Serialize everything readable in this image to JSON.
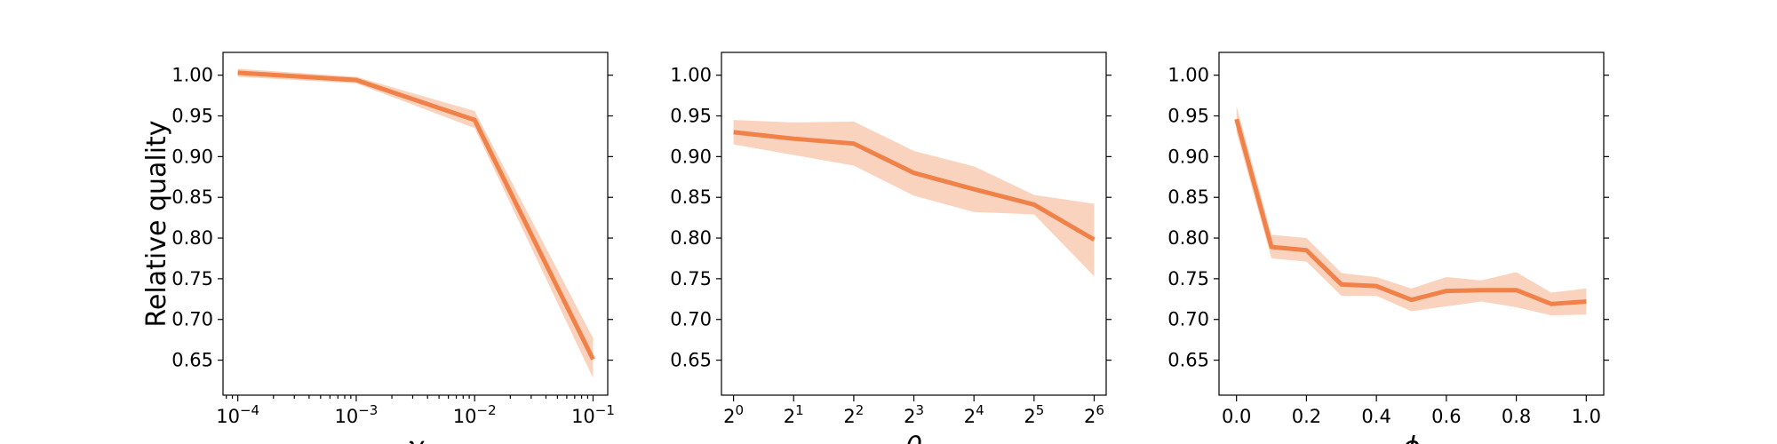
{
  "colors": {
    "series": "#f08148",
    "band": "#f08148"
  },
  "chart_data": [
    {
      "type": "line",
      "xscale": "log",
      "x": [
        0.0001,
        0.001,
        0.01,
        0.1
      ],
      "xlim": [
        7.5e-05,
        0.133
      ],
      "xticks": [
        {
          "value": 0.0001,
          "base": "10",
          "exp": "−4"
        },
        {
          "value": 0.001,
          "base": "10",
          "exp": "−3"
        },
        {
          "value": 0.01,
          "base": "10",
          "exp": "−2"
        },
        {
          "value": 0.1,
          "base": "10",
          "exp": "−1"
        }
      ],
      "xlabel": "γ",
      "ylabel": "Relative quality",
      "ylim": [
        0.607,
        1.028
      ],
      "yticks": [
        "0.65",
        "0.70",
        "0.75",
        "0.80",
        "0.85",
        "0.90",
        "0.95",
        "1.00"
      ],
      "series": [
        {
          "values": [
            1.003,
            0.994,
            0.945,
            0.651
          ],
          "lower": [
            0.998,
            0.99,
            0.935,
            0.628
          ],
          "upper": [
            1.008,
            0.998,
            0.956,
            0.677
          ]
        }
      ],
      "grid": false
    },
    {
      "type": "line",
      "xscale": "log2",
      "x": [
        1,
        2,
        4,
        8,
        16,
        32,
        64
      ],
      "xlim": [
        0.87,
        73.5
      ],
      "xticks": [
        {
          "value": 1,
          "base": "2",
          "exp": "0"
        },
        {
          "value": 2,
          "base": "2",
          "exp": "1"
        },
        {
          "value": 4,
          "base": "2",
          "exp": "2"
        },
        {
          "value": 8,
          "base": "2",
          "exp": "3"
        },
        {
          "value": 16,
          "base": "2",
          "exp": "4"
        },
        {
          "value": 32,
          "base": "2",
          "exp": "5"
        },
        {
          "value": 64,
          "base": "2",
          "exp": "6"
        }
      ],
      "xlabel": "θ",
      "ylabel": "",
      "ylim": [
        0.607,
        1.028
      ],
      "yticks": [
        "0.65",
        "0.70",
        "0.75",
        "0.80",
        "0.85",
        "0.90",
        "0.95",
        "1.00"
      ],
      "series": [
        {
          "values": [
            0.93,
            0.922,
            0.916,
            0.88,
            0.86,
            0.841,
            0.798
          ],
          "lower": [
            0.915,
            0.902,
            0.889,
            0.852,
            0.832,
            0.829,
            0.753
          ],
          "upper": [
            0.945,
            0.942,
            0.943,
            0.907,
            0.888,
            0.853,
            0.842
          ]
        }
      ],
      "grid": false
    },
    {
      "type": "line",
      "xscale": "linear",
      "x": [
        0.0,
        0.1,
        0.2,
        0.3,
        0.4,
        0.5,
        0.6,
        0.7,
        0.8,
        0.9,
        1.0
      ],
      "xlim": [
        -0.05,
        1.05
      ],
      "xticks": [
        {
          "value": 0.0,
          "text": "0.0"
        },
        {
          "value": 0.2,
          "text": "0.2"
        },
        {
          "value": 0.4,
          "text": "0.4"
        },
        {
          "value": 0.6,
          "text": "0.6"
        },
        {
          "value": 0.8,
          "text": "0.8"
        },
        {
          "value": 1.0,
          "text": "1.0"
        }
      ],
      "xlabel": "ϕ",
      "ylabel": "",
      "ylim": [
        0.607,
        1.028
      ],
      "yticks": [
        "0.65",
        "0.70",
        "0.75",
        "0.80",
        "0.85",
        "0.90",
        "0.95",
        "1.00"
      ],
      "series": [
        {
          "values": [
            0.946,
            0.789,
            0.785,
            0.743,
            0.741,
            0.724,
            0.735,
            0.736,
            0.736,
            0.719,
            0.722
          ],
          "lower": [
            0.93,
            0.775,
            0.771,
            0.729,
            0.729,
            0.71,
            0.716,
            0.722,
            0.715,
            0.705,
            0.706
          ],
          "upper": [
            0.962,
            0.804,
            0.8,
            0.757,
            0.752,
            0.738,
            0.752,
            0.748,
            0.758,
            0.733,
            0.738
          ]
        }
      ],
      "grid": false
    }
  ]
}
